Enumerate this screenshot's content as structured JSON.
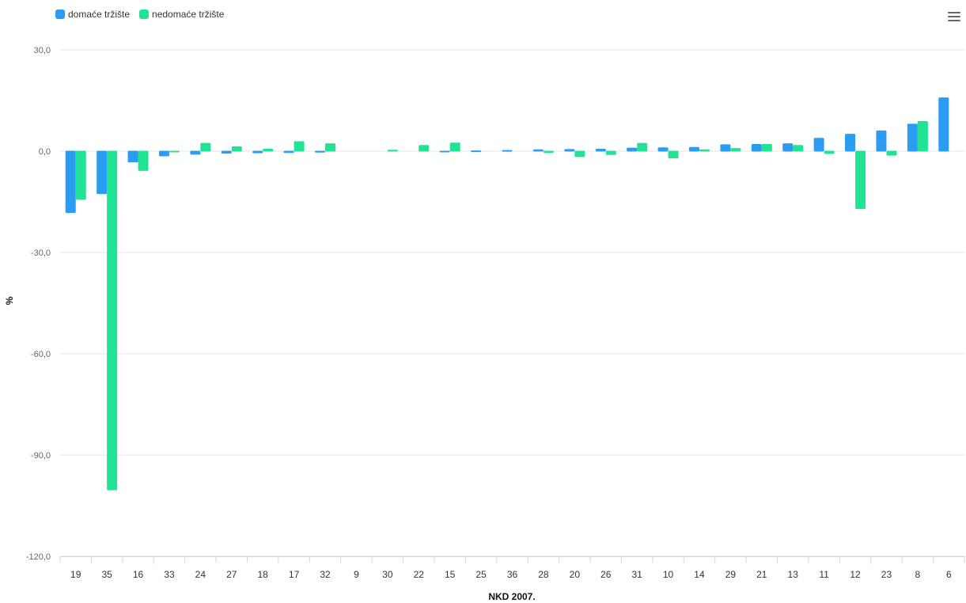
{
  "chart_data": {
    "type": "bar",
    "categories": [
      "19",
      "35",
      "16",
      "33",
      "24",
      "27",
      "18",
      "17",
      "32",
      "9",
      "30",
      "22",
      "15",
      "25",
      "36",
      "28",
      "20",
      "26",
      "31",
      "10",
      "14",
      "29",
      "21",
      "13",
      "11",
      "12",
      "23",
      "8",
      "6"
    ],
    "series": [
      {
        "name": "domaće tržište",
        "color": "#2b9cf2",
        "values": [
          -18.2,
          -12.6,
          -3.2,
          -1.4,
          -0.9,
          -0.6,
          -0.5,
          -0.4,
          -0.3,
          0.0,
          0.0,
          0.0,
          -0.2,
          0.1,
          0.2,
          0.4,
          0.5,
          0.6,
          0.9,
          1.0,
          1.1,
          1.9,
          2.0,
          2.2,
          3.8,
          5.0,
          6.0,
          8.0,
          15.8
        ]
      },
      {
        "name": "nedomaće tržište",
        "color": "#21e395",
        "values": [
          -14.3,
          -100.3,
          -5.7,
          -0.2,
          2.3,
          1.3,
          0.6,
          2.8,
          2.2,
          0.0,
          0.3,
          1.7,
          2.4,
          0.0,
          0.0,
          -0.4,
          -1.6,
          -1.0,
          2.3,
          -2.0,
          0.4,
          0.8,
          2.0,
          1.7,
          -0.7,
          -17.0,
          -1.2,
          8.8,
          0.0
        ]
      }
    ],
    "yticks": [
      30,
      0,
      -30,
      -60,
      -90,
      -120
    ],
    "ytick_labels": [
      "30,0",
      "0,0",
      "-30,0",
      "-60,0",
      "-90,0",
      "-120,0"
    ],
    "ylim": [
      -120,
      30
    ],
    "xlabel": "NKD 2007.",
    "ylabel": "%",
    "grid": true,
    "legend_position": "top-left"
  },
  "legend": {
    "items": [
      {
        "label": "domaće tržište",
        "color": "#2b9cf2"
      },
      {
        "label": "nedomaće tržište",
        "color": "#21e395"
      }
    ]
  },
  "menu": {
    "icon": "hamburger-menu-icon"
  }
}
